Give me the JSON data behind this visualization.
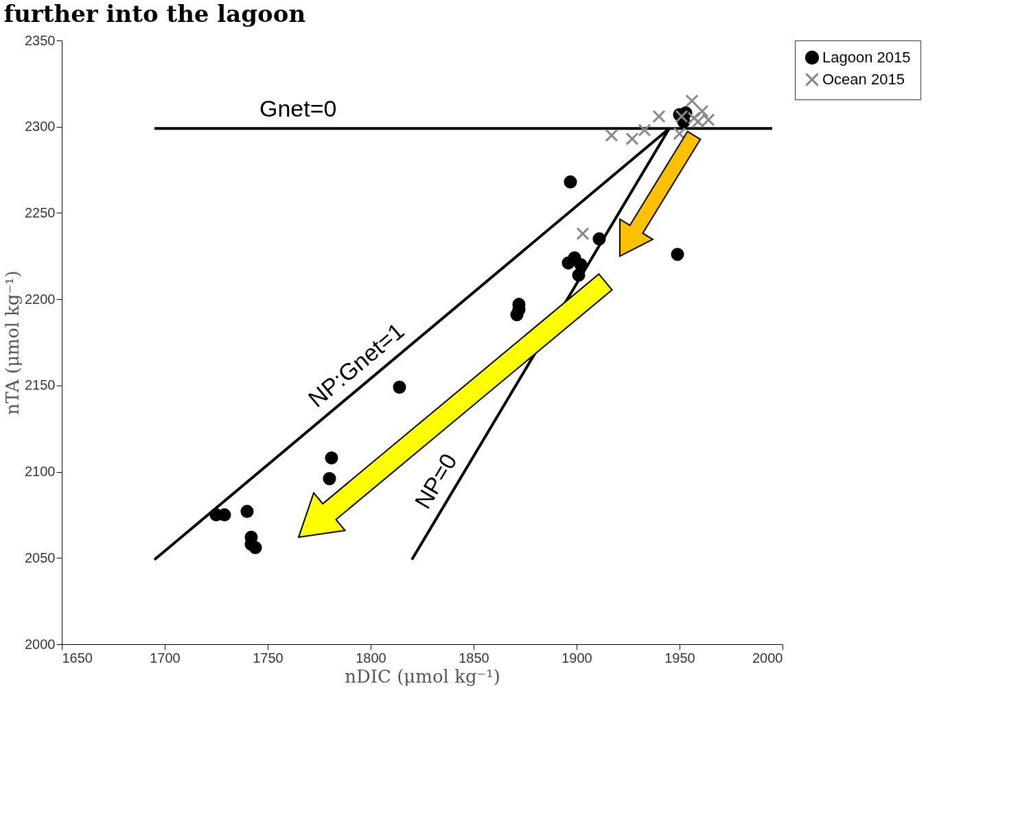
{
  "chart_data": {
    "type": "scatter",
    "title": "further into the lagoon",
    "xlabel": "nDIC (μmol kg⁻¹)",
    "ylabel": "nTA (μmol kg⁻¹)",
    "xlim": [
      1650,
      2000
    ],
    "xticks": [
      1650,
      1700,
      1750,
      1800,
      1850,
      1900,
      1950,
      2000
    ],
    "ylim": [
      2000,
      2350
    ],
    "yticks": [
      2000,
      2050,
      2100,
      2150,
      2200,
      2250,
      2300,
      2350
    ],
    "grid": false,
    "legend": "right",
    "series": [
      {
        "name": "Gnet=0",
        "type": "line",
        "color": "#000000",
        "x": [
          1695,
          1995
        ],
        "values": [
          2299,
          2299
        ]
      },
      {
        "name": "NP:Gnet=1",
        "type": "line",
        "color": "#000000",
        "x": [
          1695,
          1945
        ],
        "values": [
          2049,
          2299
        ]
      },
      {
        "name": "NP=0",
        "type": "line",
        "color": "#000000",
        "x": [
          1820,
          1945
        ],
        "values": [
          2049,
          2299
        ]
      },
      {
        "name": "Lagoon 2015",
        "marker": "circle",
        "color": "#000000",
        "x": [
          1725,
          1729,
          1740,
          1742,
          1742,
          1744,
          1780,
          1781,
          1814,
          1871,
          1872,
          1872,
          1896,
          1899,
          1902,
          1901,
          1911,
          1897,
          1949,
          1950,
          1953,
          1952
        ],
        "values": [
          2075,
          2075,
          2077,
          2062,
          2058,
          2056,
          2096,
          2108,
          2149,
          2191,
          2197,
          2194,
          2221,
          2224,
          2220,
          2214,
          2235,
          2268,
          2226,
          2307,
          2308,
          2303
        ]
      },
      {
        "name": "Ocean 2015",
        "marker": "cross",
        "color": "#888888",
        "x": [
          1917,
          1927,
          1933,
          1940,
          1956,
          1961,
          1964,
          1957,
          1951,
          1950,
          1959,
          1903
        ],
        "values": [
          2295,
          2293,
          2298,
          2306,
          2315,
          2309,
          2304,
          2305,
          2306,
          2296,
          2303,
          2238
        ]
      }
    ]
  }
}
